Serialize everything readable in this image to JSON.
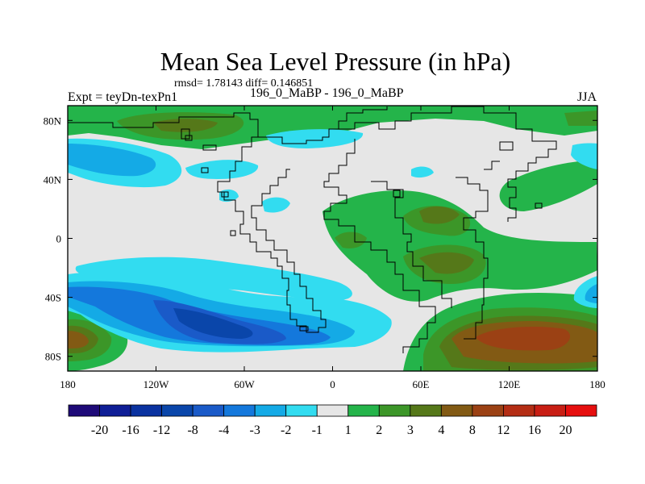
{
  "title": "Mean Sea Level Pressure (in hPa)",
  "stats": "rmsd= 1.78143  diff= 0.146851",
  "subtitle": "196_0_MaBP - 196_0_MaBP",
  "left_label": "Expt = teyDn-texPn1",
  "right_label": "JJA",
  "colors": {
    "background": "#ffffff",
    "neutral": "#e6e6e6",
    "coast": "#000000"
  },
  "chart_data": {
    "type": "heatmap",
    "title": "Mean Sea Level Pressure (in hPa)",
    "x_ticks": [
      "180",
      "120W",
      "60W",
      "0",
      "60E",
      "120E",
      "180"
    ],
    "y_ticks": [
      "80N",
      "40N",
      "0",
      "40S",
      "80S"
    ],
    "xlim": [
      -180,
      180
    ],
    "ylim": [
      -90,
      90
    ],
    "colorbar": {
      "labels": [
        "-20",
        "-16",
        "-12",
        "-8",
        "-4",
        "-3",
        "-2",
        "-1",
        "1",
        "2",
        "3",
        "4",
        "8",
        "12",
        "16",
        "20"
      ],
      "colors": [
        "#1e0a78",
        "#0f1e96",
        "#0a32a0",
        "#0a46aa",
        "#1a5ac8",
        "#1478dc",
        "#14aae6",
        "#32dcf0",
        "#e6e6e6",
        "#24b44a",
        "#3c9628",
        "#557819",
        "#825a14",
        "#9b4114",
        "#b42d14",
        "#c81e14",
        "#e60f0f"
      ]
    },
    "regions": [
      {
        "name": "north-pacific-low",
        "level": "-3",
        "lon": [
          -180,
          -110
        ],
        "lat": [
          45,
          70
        ]
      },
      {
        "name": "arctic-high",
        "level": "3",
        "lon": [
          -140,
          -80
        ],
        "lat": [
          70,
          88
        ]
      },
      {
        "name": "south-pacific-low",
        "level": "-8",
        "lon": [
          -130,
          -40
        ],
        "lat": [
          -80,
          -45
        ]
      },
      {
        "name": "southern-indian-high",
        "level": "8",
        "lon": [
          60,
          170
        ],
        "lat": [
          -85,
          -45
        ]
      },
      {
        "name": "africa-high",
        "level": "3",
        "lon": [
          60,
          110
        ],
        "lat": [
          -35,
          10
        ]
      },
      {
        "name": "west-pacific-high",
        "level": "4",
        "lon": [
          -180,
          -140
        ],
        "lat": [
          -85,
          -60
        ]
      }
    ]
  }
}
